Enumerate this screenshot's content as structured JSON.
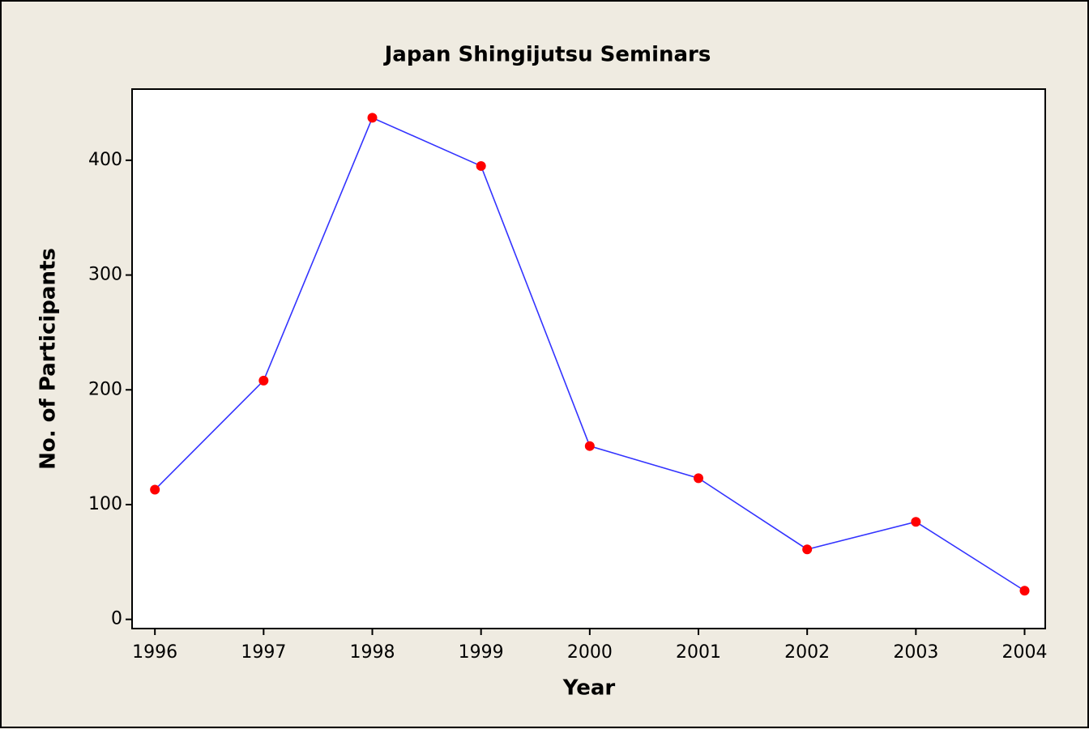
{
  "chart_data": {
    "type": "line",
    "title": "Japan Shingijutsu Seminars",
    "xlabel": "Year",
    "ylabel": "No. of Participants",
    "x": [
      1996,
      1997,
      1998,
      1999,
      2000,
      2001,
      2002,
      2003,
      2004
    ],
    "series": [
      {
        "name": "No. of Participants",
        "color": "#3333ff",
        "marker_color": "#ff0000",
        "values": [
          113,
          208,
          437,
          395,
          151,
          123,
          61,
          85,
          25
        ]
      }
    ],
    "xlim": [
      1995.79,
      2004.19
    ],
    "xticks": [
      1996,
      1997,
      1998,
      1999,
      2000,
      2001,
      2002,
      2003,
      2004
    ],
    "ylim": [
      -8,
      462
    ],
    "yticks": [
      0,
      100,
      200,
      300,
      400
    ]
  }
}
